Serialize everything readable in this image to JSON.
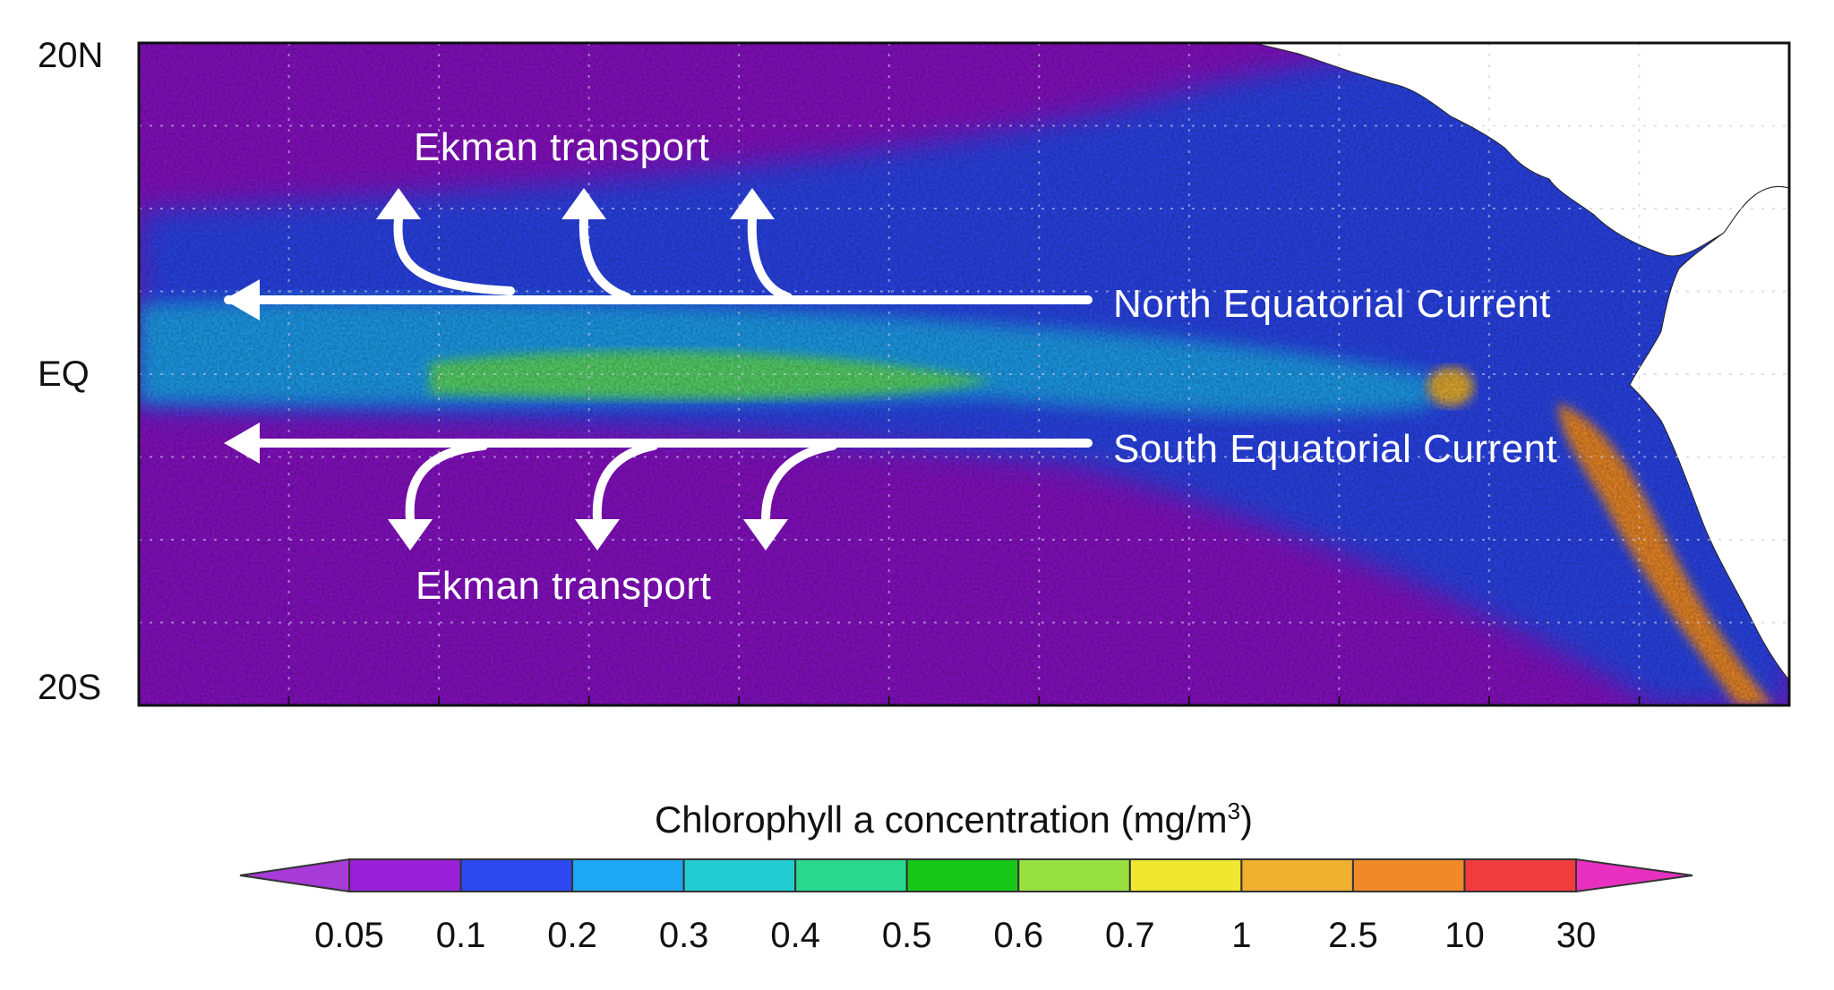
{
  "map": {
    "lat_labels": {
      "north": "20N",
      "equator": "EQ",
      "south": "20S"
    },
    "annotations": {
      "ekman_north": "Ekman transport",
      "ekman_south": "Ekman transport",
      "north_current": "North Equatorial Current",
      "south_current": "South Equatorial Current"
    },
    "colors": {
      "ocean_oligotrophic": "#8a10c8",
      "ocean_low": "#2a44ee",
      "ocean_mid": "#1aa0f0",
      "ocean_high": "#58d86a",
      "land": "#ffffff",
      "arrow": "#ffffff"
    }
  },
  "colorbar": {
    "title_prefix": "Chlorophyll a concentration (mg/m",
    "title_sup": "3",
    "title_suffix": ")",
    "tick_labels": [
      "0.05",
      "0.1",
      "0.2",
      "0.3",
      "0.4",
      "0.5",
      "0.6",
      "0.7",
      "1",
      "2.5",
      "10",
      "30"
    ],
    "bins": [
      {
        "color": "#9a20d8"
      },
      {
        "color": "#2d48ee"
      },
      {
        "color": "#1ea8f4"
      },
      {
        "color": "#22ccd0"
      },
      {
        "color": "#2ad890"
      },
      {
        "color": "#18c818"
      },
      {
        "color": "#98e040"
      },
      {
        "color": "#f0e830"
      },
      {
        "color": "#f0b030"
      },
      {
        "color": "#f08a28"
      },
      {
        "color": "#f03c3c"
      }
    ],
    "end_low_color": "#a83ad8",
    "end_high_color": "#e830c0"
  }
}
